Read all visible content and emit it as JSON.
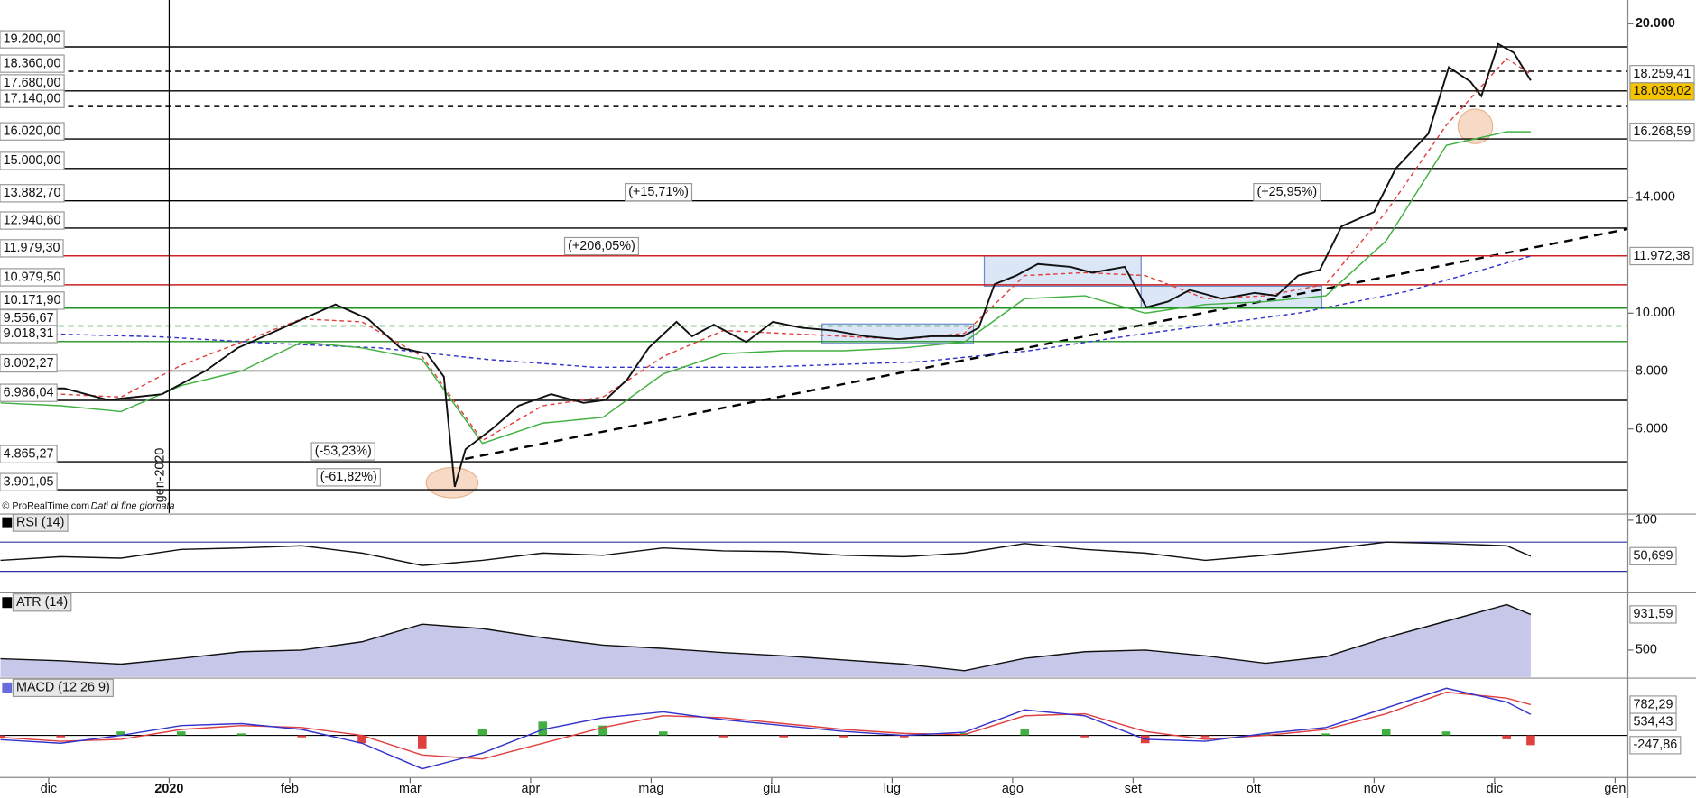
{
  "chart_data": [
    {
      "type": "line",
      "source": "© ProRealTime.com",
      "source_note": "Dati di fine giornata",
      "marker": {
        "x": 1,
        "label": "gen-2020"
      },
      "xlim": [
        -0.404,
        13.106
      ],
      "xticks": [
        {
          "value": 0,
          "label": "dic"
        },
        {
          "value": 1,
          "label": "2020"
        },
        {
          "value": 2,
          "label": "feb"
        },
        {
          "value": 3,
          "label": "mar"
        },
        {
          "value": 4,
          "label": "apr"
        },
        {
          "value": 5,
          "label": "mag"
        },
        {
          "value": 6,
          "label": "giu"
        },
        {
          "value": 7,
          "label": "lug"
        },
        {
          "value": 8,
          "label": "ago"
        },
        {
          "value": 9,
          "label": "set"
        },
        {
          "value": 10,
          "label": "ott"
        },
        {
          "value": 11,
          "label": "nov"
        },
        {
          "value": 12,
          "label": "dic"
        },
        {
          "value": 13,
          "label": "gen"
        }
      ],
      "ylim": [
        3097,
        20821
      ],
      "yticks": [
        {
          "value": 20000,
          "label": "20.000"
        },
        {
          "value": 14000,
          "label": "14.000"
        },
        {
          "value": 10000,
          "label": "10.000"
        },
        {
          "value": 8000,
          "label": "8.000"
        },
        {
          "value": 6000,
          "label": "6.000"
        }
      ],
      "levels": [
        {
          "value": 19200,
          "label": "19.200,00",
          "color": "#000000"
        },
        {
          "value": 18360,
          "label": "18.360,00",
          "color": "#000000",
          "dashed": true
        },
        {
          "value": 17680,
          "label": "17.680,00",
          "color": "#000000"
        },
        {
          "value": 17140,
          "label": "17.140,00",
          "color": "#000000",
          "dashed": true
        },
        {
          "value": 16020,
          "label": "16.020,00",
          "color": "#000000"
        },
        {
          "value": 15000,
          "label": "15.000,00",
          "color": "#000000"
        },
        {
          "value": 13882.7,
          "label": "13.882,70",
          "color": "#000000"
        },
        {
          "value": 12940.6,
          "label": "12.940,60",
          "color": "#000000"
        },
        {
          "value": 11979.3,
          "label": "11.979,30",
          "color": "#cc2020"
        },
        {
          "value": 10979.5,
          "label": "10.979,50",
          "color": "#cc2020"
        },
        {
          "value": 10171.9,
          "label": "10.171,90",
          "color": "#209020"
        },
        {
          "value": 9556.67,
          "label": "9.556,67",
          "color": "#209020",
          "dashed": true
        },
        {
          "value": 9018.31,
          "label": "9.018,31",
          "color": "#209020"
        },
        {
          "value": 8002.27,
          "label": "8.002,27",
          "color": "#000000"
        },
        {
          "value": 6986.04,
          "label": "6.986,04",
          "color": "#000000"
        },
        {
          "value": 4865.27,
          "label": "4.865,27",
          "color": "#000000"
        },
        {
          "value": 3901.05,
          "label": "3.901,05",
          "color": "#000000"
        }
      ],
      "annotations": [
        "(+15,71%)",
        "(+206,05%)",
        "(-53,23%)",
        "(-61,82%)",
        "(+25,95%)"
      ],
      "x": [
        -0.4,
        0.1,
        0.6,
        1.1,
        1.6,
        2.1,
        2.6,
        3.1,
        3.6,
        4.1,
        4.6,
        5.1,
        5.6,
        6.1,
        6.6,
        7.1,
        7.6,
        8.1,
        8.6,
        9.1,
        9.6,
        10.1,
        10.6,
        11.1,
        11.6,
        12.1,
        12.3
      ],
      "series": [
        {
          "color": "#3333cc",
          "dashed": true,
          "last_label": "11.972,38",
          "x": [
            -0.4,
            0.94,
            1.84,
            2.74,
            3.64,
            4.53,
            5.88,
            7.23,
            8.12,
            9.02,
            10.37,
            11.27,
            12.3
          ],
          "values": [
            9328,
            9180,
            8960,
            8800,
            8400,
            8130,
            8130,
            8320,
            8690,
            9250,
            10000,
            10750,
            11972.38
          ]
        },
        {
          "color": "#e04040",
          "dashed": true,
          "last_label": "18.259,41",
          "values": [
            7300,
            7200,
            7100,
            8200,
            9000,
            9800,
            9700,
            8500,
            5600,
            6800,
            7100,
            8500,
            9400,
            9300,
            9200,
            9100,
            9300,
            11300,
            11400,
            11300,
            10500,
            10600,
            11000,
            13500,
            16500,
            18800,
            18259.41
          ]
        },
        {
          "color": "#40b040",
          "last_label": "16.268,59",
          "values": [
            6900,
            6800,
            6600,
            7500,
            8000,
            9000,
            8800,
            8400,
            5500,
            6200,
            6400,
            7900,
            8600,
            8700,
            8700,
            8800,
            9000,
            10500,
            10600,
            10000,
            10300,
            10400,
            10600,
            12500,
            15800,
            16268.59,
            16268.59
          ]
        },
        {
          "color": "#111111",
          "width": 1.6,
          "last_label": "18.039,02",
          "label_fill": "#f5c400",
          "x": [
            -0.4,
            0.13,
            0.49,
            0.94,
            1.3,
            1.57,
            1.84,
            2.11,
            2.38,
            2.65,
            2.92,
            3.14,
            3.28,
            3.37,
            3.46,
            3.68,
            3.9,
            4.17,
            4.44,
            4.62,
            4.8,
            4.98,
            5.21,
            5.34,
            5.52,
            5.79,
            6.01,
            6.24,
            6.51,
            6.78,
            7.05,
            7.32,
            7.59,
            7.72,
            7.85,
            8.03,
            8.21,
            8.48,
            8.66,
            8.93,
            9.11,
            9.29,
            9.47,
            9.74,
            10.01,
            10.19,
            10.37,
            10.55,
            10.73,
            11.0,
            11.18,
            11.36,
            11.45,
            11.62,
            11.8,
            11.89,
            12.03,
            12.16,
            12.3
          ],
          "values": [
            7400,
            7400,
            7000,
            7200,
            8000,
            8800,
            9300,
            9800,
            10300,
            9800,
            8800,
            8600,
            7800,
            4000,
            5300,
            6000,
            6800,
            7200,
            6900,
            7000,
            7700,
            8800,
            9700,
            9200,
            9600,
            9000,
            9700,
            9500,
            9400,
            9200,
            9100,
            9200,
            9200,
            9500,
            11000,
            11300,
            11700,
            11600,
            11400,
            11600,
            10200,
            10400,
            10800,
            10500,
            10700,
            10600,
            11300,
            11500,
            13000,
            13500,
            15000,
            15800,
            16200,
            18500,
            18000,
            17500,
            19300,
            19000,
            18039.02
          ]
        }
      ]
    },
    {
      "type": "line",
      "title": "RSI (14)",
      "ylim": [
        2,
        108.5
      ],
      "yticks": [
        100
      ],
      "bands": [
        30,
        70
      ],
      "x": [
        -0.4,
        0.1,
        0.6,
        1.1,
        1.6,
        2.1,
        2.6,
        3.1,
        3.6,
        4.1,
        4.6,
        5.1,
        5.6,
        6.1,
        6.6,
        7.1,
        7.6,
        8.1,
        8.6,
        9.1,
        9.6,
        10.1,
        10.6,
        11.1,
        11.6,
        12.1,
        12.3
      ],
      "series": [
        {
          "color": "#111111",
          "last_label": "50,699",
          "values": [
            45,
            50,
            48,
            60,
            62,
            65,
            55,
            38,
            45,
            55,
            52,
            62,
            58,
            57,
            52,
            50,
            55,
            68,
            60,
            55,
            45,
            52,
            60,
            70,
            68,
            65,
            50.699
          ]
        }
      ]
    },
    {
      "type": "area",
      "title": "ATR (14)",
      "ylim": [
        173,
        1180
      ],
      "yticks": [
        500
      ],
      "x": [
        -0.4,
        0.1,
        0.6,
        1.1,
        1.6,
        2.1,
        2.6,
        3.1,
        3.6,
        4.1,
        4.6,
        5.1,
        5.6,
        6.1,
        6.6,
        7.1,
        7.6,
        8.1,
        8.6,
        9.1,
        9.6,
        10.1,
        10.6,
        11.1,
        11.6,
        12.1,
        12.3
      ],
      "series": [
        {
          "color": "#111111",
          "fill": "#b9b9e3",
          "last_label": "931,59",
          "values": [
            395,
            370,
            330,
            400,
            480,
            500,
            600,
            814,
            760,
            650,
            560,
            520,
            470,
            430,
            380,
            330,
            250,
            400,
            480,
            500,
            430,
            340,
            420,
            650,
            850,
            1050,
            931.59
          ]
        }
      ]
    },
    {
      "type": "line",
      "title": "MACD (12 26 9)",
      "ylim": [
        -1072,
        1430
      ],
      "yticks": [],
      "x": [
        -0.4,
        0.1,
        0.6,
        1.1,
        1.6,
        2.1,
        2.6,
        3.1,
        3.6,
        4.1,
        4.6,
        5.1,
        5.6,
        6.1,
        6.6,
        7.1,
        7.6,
        8.1,
        8.6,
        9.1,
        9.6,
        10.1,
        10.6,
        11.1,
        11.6,
        12.1,
        12.3
      ],
      "series": [
        {
          "type": "bar",
          "color": "#40b040",
          "negative_color": "#e04040",
          "last_label": "-247,86",
          "label_color": "#e04040",
          "values": [
            -60,
            -50,
            100,
            100,
            50,
            -50,
            -200,
            -350,
            150,
            350,
            250,
            100,
            -50,
            -50,
            -50,
            -50,
            60,
            150,
            -50,
            -200,
            -50,
            50,
            50,
            150,
            100,
            -100,
            -247.86
          ]
        },
        {
          "color": "#e04040",
          "last_label": "782,29",
          "values": [
            -50,
            -150,
            -100,
            150,
            250,
            200,
            0,
            -500,
            -600,
            -200,
            200,
            500,
            450,
            300,
            150,
            50,
            20,
            500,
            550,
            100,
            -100,
            0,
            150,
            550,
            1100,
            950,
            782.29
          ]
        },
        {
          "color": "#3333cc",
          "last_label": "534,43",
          "values": [
            -110,
            -200,
            0,
            250,
            300,
            150,
            -200,
            -850,
            -450,
            150,
            450,
            600,
            400,
            250,
            100,
            0,
            80,
            650,
            500,
            -100,
            -150,
            50,
            200,
            700,
            1200,
            850,
            534.43
          ]
        }
      ]
    }
  ]
}
